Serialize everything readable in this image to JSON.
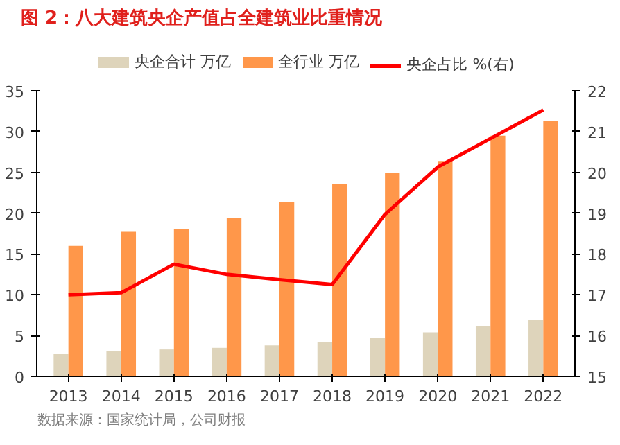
{
  "chart_data": {
    "type": "bar",
    "title": "图 2：八大建筑央企产值占全建筑业比重情况",
    "categories": [
      "2013",
      "2014",
      "2015",
      "2016",
      "2017",
      "2018",
      "2019",
      "2020",
      "2021",
      "2022"
    ],
    "series": [
      {
        "name": "央企合计 万亿",
        "color": "#ded4bb",
        "values": [
          2.8,
          3.1,
          3.3,
          3.5,
          3.8,
          4.2,
          4.7,
          5.4,
          6.2,
          6.9
        ]
      },
      {
        "name": "全行业 万亿",
        "color": "#ff974a",
        "values": [
          16.0,
          17.8,
          18.1,
          19.4,
          21.4,
          23.6,
          24.9,
          26.4,
          29.5,
          31.3
        ]
      },
      {
        "name": "央企占比 %(右)",
        "color": "#ff0000",
        "type": "line",
        "axis": "y2",
        "values": [
          17.0,
          17.05,
          17.75,
          17.5,
          17.37,
          17.25,
          18.97,
          20.13,
          20.83,
          21.53
        ]
      }
    ],
    "ylim": [
      0,
      35
    ],
    "yticks": [
      0,
      5,
      10,
      15,
      20,
      25,
      30,
      35
    ],
    "y2lim": [
      15,
      22
    ],
    "y2ticks": [
      15,
      16,
      17,
      18,
      19,
      20,
      21,
      22
    ],
    "grid": false,
    "legend": "top",
    "marker": "none",
    "annotations": [
      "数据来源：国家统计局，公司财报"
    ]
  }
}
